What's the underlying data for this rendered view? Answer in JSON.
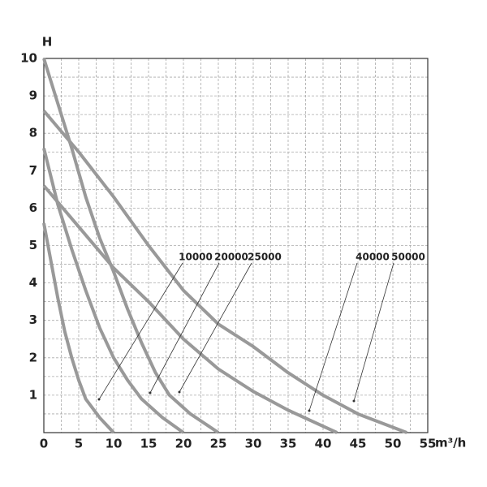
{
  "chart_data": {
    "type": "line",
    "y_label": "H",
    "x_label": "m³/h",
    "xlim": [
      0,
      55
    ],
    "xticks": [
      0,
      5,
      10,
      15,
      20,
      25,
      30,
      35,
      40,
      45,
      50,
      55
    ],
    "ylim": [
      0,
      10
    ],
    "yticks": [
      1,
      2,
      3,
      4,
      5,
      6,
      7,
      8,
      9,
      10
    ],
    "grid": true,
    "series": [
      {
        "name": "10000",
        "color": "#999999",
        "x": [
          0,
          1,
          2,
          3,
          4,
          5,
          6,
          8,
          10
        ],
        "values": [
          5.6,
          4.6,
          3.6,
          2.7,
          2.0,
          1.4,
          0.9,
          0.4,
          0
        ]
      },
      {
        "name": "20000",
        "color": "#999999",
        "x": [
          0,
          2,
          4,
          6,
          8,
          10,
          12,
          14,
          17,
          20
        ],
        "values": [
          7.6,
          6.1,
          4.9,
          3.8,
          2.8,
          2.0,
          1.4,
          0.9,
          0.4,
          0
        ]
      },
      {
        "name": "25000",
        "color": "#999999",
        "x": [
          0,
          2,
          4,
          6,
          8,
          10,
          12,
          14,
          16,
          18,
          21,
          25
        ],
        "values": [
          10,
          8.8,
          7.6,
          6.3,
          5.2,
          4.3,
          3.3,
          2.4,
          1.6,
          1.0,
          0.5,
          0
        ]
      },
      {
        "name": "40000",
        "color": "#999999",
        "x": [
          0,
          5,
          10,
          15,
          20,
          25,
          30,
          35,
          42
        ],
        "values": [
          6.6,
          5.5,
          4.4,
          3.5,
          2.5,
          1.7,
          1.1,
          0.6,
          0
        ]
      },
      {
        "name": "50000",
        "color": "#999999",
        "x": [
          0,
          5,
          10,
          15,
          20,
          25,
          30,
          35,
          40,
          45,
          52
        ],
        "values": [
          8.6,
          7.5,
          6.3,
          5.0,
          3.8,
          2.9,
          2.3,
          1.6,
          1.0,
          0.5,
          0
        ]
      }
    ]
  }
}
